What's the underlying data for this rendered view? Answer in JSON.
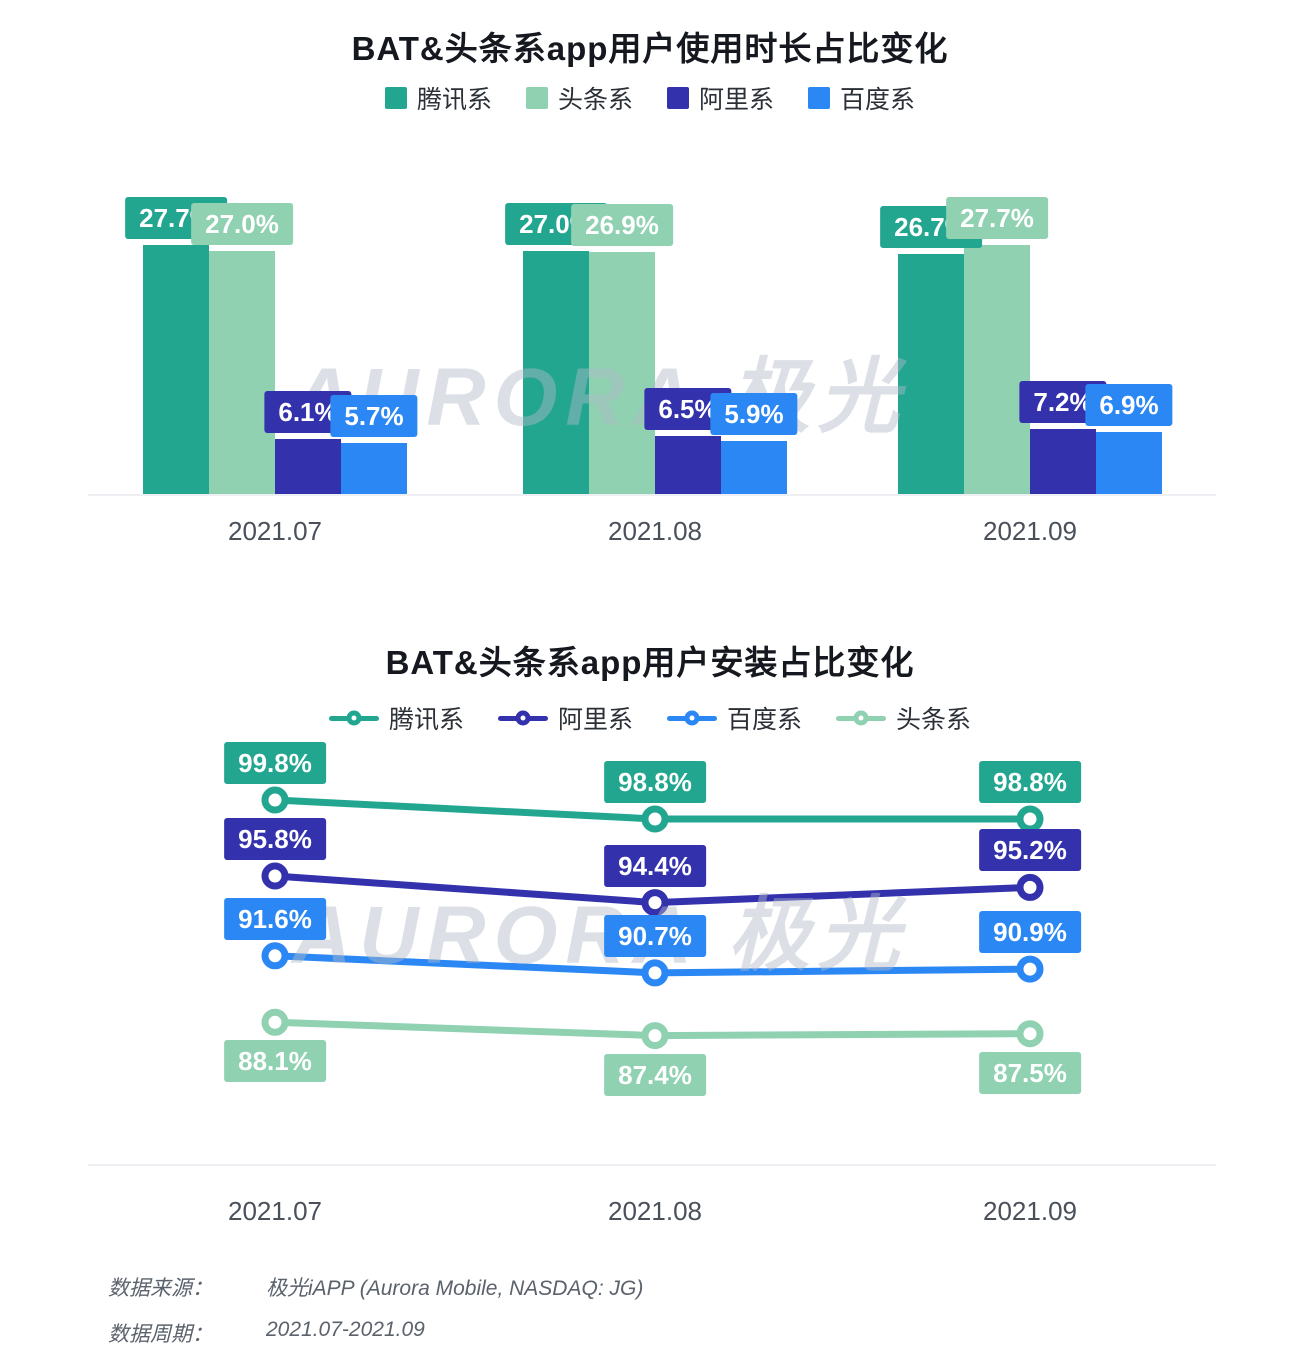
{
  "watermark": "AURORA 极光",
  "chart_data": [
    {
      "type": "bar",
      "title": "BAT&头条系app用户使用时长占比变化",
      "categories": [
        "2021.07",
        "2021.08",
        "2021.09"
      ],
      "series": [
        {
          "name": "腾讯系",
          "color": "#22a690",
          "values": [
            27.7,
            27.0,
            26.7
          ]
        },
        {
          "name": "头条系",
          "color": "#8fd1b1",
          "values": [
            27.0,
            26.9,
            27.7
          ]
        },
        {
          "name": "阿里系",
          "color": "#3431ad",
          "values": [
            6.1,
            6.5,
            7.2
          ]
        },
        {
          "name": "百度系",
          "color": "#2b87f3",
          "values": [
            5.7,
            5.9,
            6.9
          ]
        }
      ],
      "value_suffix": "%",
      "ylim": [
        0,
        30
      ],
      "grid": false,
      "legend_position": "top",
      "data_labels": true
    },
    {
      "type": "line",
      "title": "BAT&头条系app用户安装占比变化",
      "categories": [
        "2021.07",
        "2021.08",
        "2021.09"
      ],
      "series": [
        {
          "name": "腾讯系",
          "color": "#22a690",
          "values": [
            99.8,
            98.8,
            98.8
          ],
          "label_position": "above"
        },
        {
          "name": "阿里系",
          "color": "#3431ad",
          "values": [
            95.8,
            94.4,
            95.2
          ],
          "label_position": "above"
        },
        {
          "name": "百度系",
          "color": "#2b87f3",
          "values": [
            91.6,
            90.7,
            90.9
          ],
          "label_position": "above"
        },
        {
          "name": "头条系",
          "color": "#8fd1b1",
          "values": [
            88.1,
            87.4,
            87.5
          ],
          "label_position": "below"
        }
      ],
      "value_suffix": "%",
      "ylim": [
        85,
        101
      ],
      "grid": false,
      "legend_position": "top",
      "data_labels": true
    }
  ],
  "footer": {
    "source_label": "数据来源：",
    "source_value": "极光iAPP (Aurora Mobile, NASDAQ: JG)",
    "period_label": "数据周期：",
    "period_value": "2021.07-2021.09"
  }
}
